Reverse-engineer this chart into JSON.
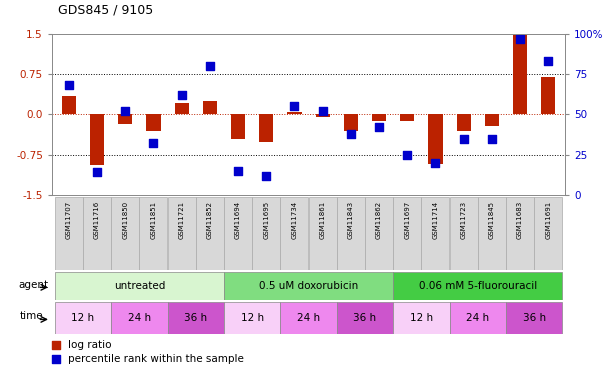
{
  "title": "GDS845 / 9105",
  "samples": [
    "GSM11707",
    "GSM11716",
    "GSM11850",
    "GSM11851",
    "GSM11721",
    "GSM11852",
    "GSM11694",
    "GSM11695",
    "GSM11734",
    "GSM11861",
    "GSM11843",
    "GSM11862",
    "GSM11697",
    "GSM11714",
    "GSM11723",
    "GSM11845",
    "GSM11683",
    "GSM11691"
  ],
  "log_ratio": [
    0.35,
    -0.95,
    -0.18,
    -0.3,
    0.22,
    0.25,
    -0.45,
    -0.52,
    0.05,
    -0.05,
    -0.3,
    -0.12,
    -0.12,
    -0.92,
    -0.3,
    -0.22,
    1.48,
    0.7
  ],
  "percentile": [
    68,
    14,
    52,
    32,
    62,
    80,
    15,
    12,
    55,
    52,
    38,
    42,
    25,
    20,
    35,
    35,
    97,
    83
  ],
  "agent_groups": [
    {
      "label": "untreated",
      "start": 0,
      "end": 6,
      "color": "#d8f5d0"
    },
    {
      "label": "0.5 uM doxorubicin",
      "start": 6,
      "end": 12,
      "color": "#80dd80"
    },
    {
      "label": "0.06 mM 5-fluorouracil",
      "start": 12,
      "end": 18,
      "color": "#44cc44"
    }
  ],
  "time_groups": [
    {
      "label": "12 h",
      "start": 0,
      "end": 2,
      "color": "#f8d0f8"
    },
    {
      "label": "24 h",
      "start": 2,
      "end": 4,
      "color": "#ee88ee"
    },
    {
      "label": "36 h",
      "start": 4,
      "end": 6,
      "color": "#cc55cc"
    },
    {
      "label": "12 h",
      "start": 6,
      "end": 8,
      "color": "#f8d0f8"
    },
    {
      "label": "24 h",
      "start": 8,
      "end": 10,
      "color": "#ee88ee"
    },
    {
      "label": "36 h",
      "start": 10,
      "end": 12,
      "color": "#cc55cc"
    },
    {
      "label": "12 h",
      "start": 12,
      "end": 14,
      "color": "#f8d0f8"
    },
    {
      "label": "24 h",
      "start": 14,
      "end": 16,
      "color": "#ee88ee"
    },
    {
      "label": "36 h",
      "start": 16,
      "end": 18,
      "color": "#cc55cc"
    }
  ],
  "ylim": [
    -1.5,
    1.5
  ],
  "yticks_left": [
    -1.5,
    -0.75,
    0.0,
    0.75,
    1.5
  ],
  "yticks_right": [
    0,
    25,
    50,
    75,
    100
  ],
  "bar_color": "#bb2200",
  "dot_color": "#0000cc",
  "bar_width": 0.5,
  "dot_size": 35,
  "sample_bg_color": "#d8d8d8",
  "sample_border_color": "#aaaaaa"
}
